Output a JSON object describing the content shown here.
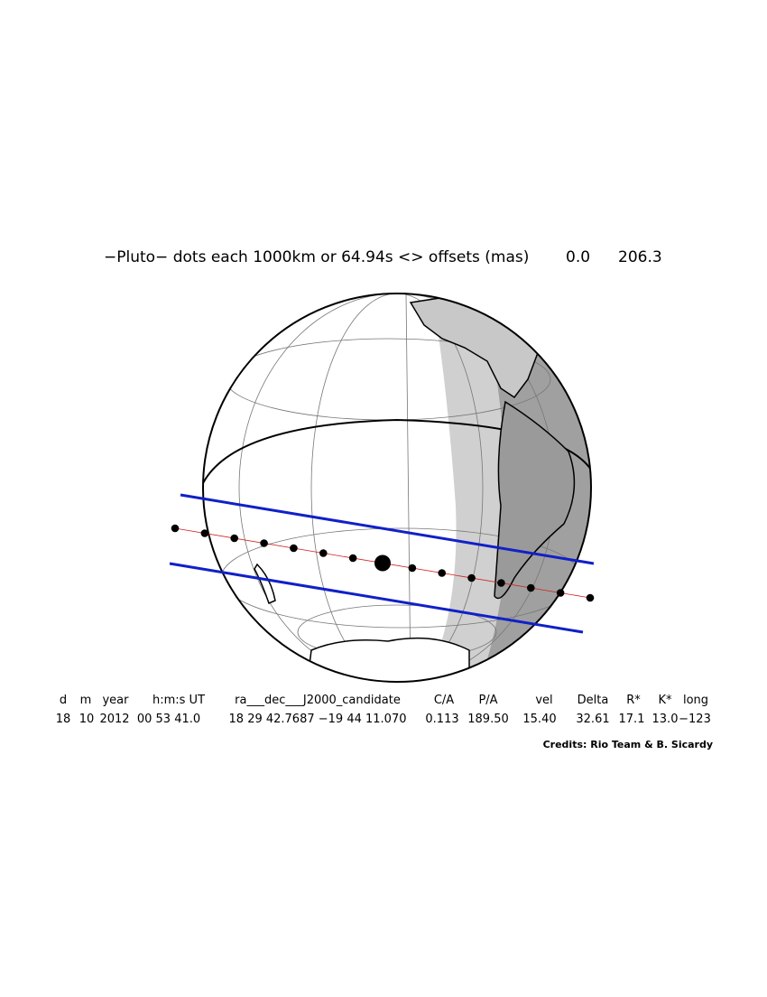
{
  "header": {
    "title": "−Pluto− dots each 1000km or 64.94s <> offsets (mas)",
    "offsets": [
      "0.0",
      "206.3"
    ]
  },
  "table": {
    "columns": [
      "d",
      "m",
      "year",
      "h:m:s UT",
      "ra___dec___J2000_candidate",
      "C/A",
      "P/A",
      "vel",
      "Delta",
      "R*",
      "K*",
      "long"
    ],
    "row": [
      "18",
      "10",
      "2012",
      "00 53 41.0",
      "18 29 42.7687 −19 44 11.070",
      "0.113",
      "189.50",
      "15.40",
      "32.61",
      "17.1",
      "13.0",
      "−123"
    ]
  },
  "credits": "Credits: Rio Team & B. Sicardy"
}
